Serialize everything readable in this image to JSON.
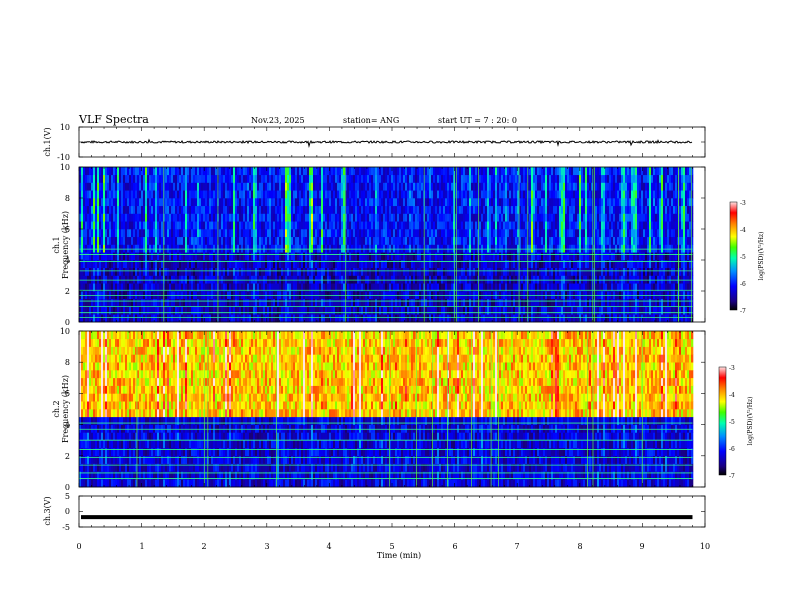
{
  "header": {
    "title": "VLF Spectra",
    "date": "Nov.23, 2025",
    "station": "station= ANG",
    "start_ut": "start  UT =   7 : 20: 0"
  },
  "chart_data": [
    {
      "type": "line",
      "name": "ch1-waveform",
      "ylabel": "ch.1(V)",
      "ylim": [
        -10,
        10
      ],
      "yticks": [
        "10",
        "-10"
      ],
      "description_level_V": 0,
      "xlim": [
        0,
        10
      ]
    },
    {
      "type": "heatmap",
      "name": "ch1-spectrogram",
      "ylabel_channel": "ch.1",
      "ylabel": "Frequency (kHz)",
      "ylim": [
        0,
        10
      ],
      "yticks": [
        "0",
        "2",
        "4",
        "6",
        "8",
        "10"
      ],
      "data_end_min": 9.8,
      "colorbar": {
        "label": "log(PSD)(V²/Hz)",
        "ticks": [
          "-3",
          "-4",
          "-5",
          "-6",
          "-7"
        ],
        "range": [
          -7,
          -3
        ]
      },
      "low_band_level": -6.5,
      "high_band_level": -6.2,
      "line_freqs_kHz": [
        4.7,
        4.35,
        3.9,
        3.3,
        2.7,
        2.05,
        1.7,
        1.35,
        1.0,
        0.6,
        0.3
      ]
    },
    {
      "type": "heatmap",
      "name": "ch2-spectrogram",
      "ylabel_channel": "ch.2",
      "ylabel": "Frequency (kHz)",
      "ylim": [
        0,
        10
      ],
      "yticks": [
        "0",
        "2",
        "4",
        "6",
        "8",
        "10"
      ],
      "data_end_min": 9.8,
      "colorbar": {
        "label": "log(PSD)(V²/Hz)",
        "ticks": [
          "-3",
          "-4",
          "-5",
          "-6",
          "-7"
        ],
        "range": [
          -7,
          -3
        ]
      },
      "low_band_level": -6.4,
      "high_band_level": -4.0,
      "line_freqs_kHz": [
        4.1,
        3.7,
        3.0,
        2.4,
        1.9,
        1.4,
        0.9,
        0.55
      ]
    },
    {
      "type": "line",
      "name": "ch3-waveform",
      "ylabel": "ch.3(V)",
      "ylim": [
        -5,
        5
      ],
      "yticks": [
        "5",
        "0",
        "-5"
      ],
      "level_V": -1.8,
      "xlim": [
        0,
        10
      ]
    }
  ],
  "xaxis": {
    "label": "Time  (min)",
    "ticks": [
      "0",
      "1",
      "2",
      "3",
      "4",
      "5",
      "6",
      "7",
      "8",
      "9",
      "10"
    ],
    "xlim": [
      0,
      10
    ]
  },
  "colors": {
    "colormap": [
      "#1a0080",
      "#0000ff",
      "#0080ff",
      "#00e0ff",
      "#00ff80",
      "#80ff00",
      "#ffff00",
      "#ff8000",
      "#ff0000",
      "#ffe0e0"
    ],
    "background": "#ffffff",
    "ink": "#000000"
  }
}
